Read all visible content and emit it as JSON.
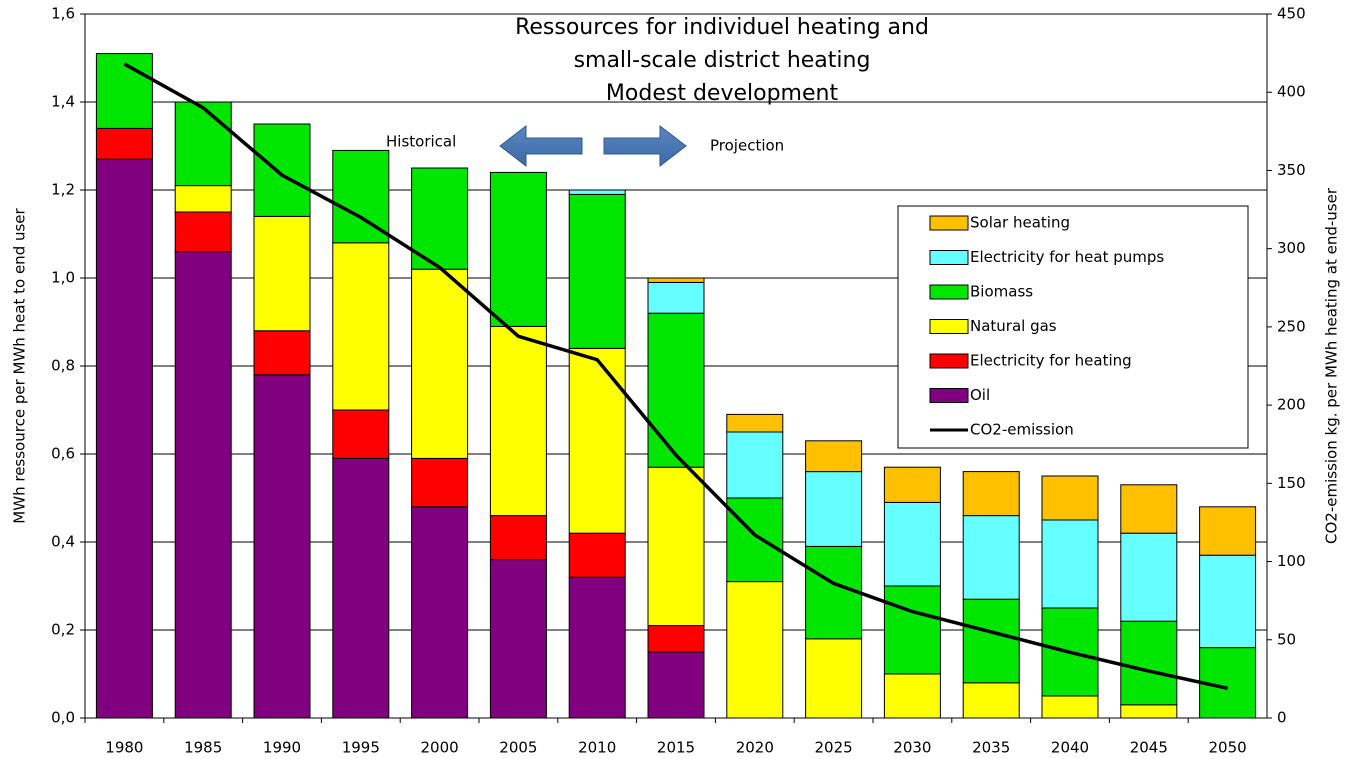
{
  "chart_data": {
    "type": "bar",
    "stacked": true,
    "title": [
      "Ressources for individuel heating and",
      "small-scale district heating",
      "Modest development"
    ],
    "ylabel": "MWh ressource per MWh heat to end user",
    "y2label": "CO2-emission kg. per MWh heating at end-user",
    "annotations": [
      "Historical",
      "Projection"
    ],
    "categories": [
      "1980",
      "1985",
      "1990",
      "1995",
      "2000",
      "2005",
      "2010",
      "2015",
      "2020",
      "2025",
      "2030",
      "2035",
      "2040",
      "2045",
      "2050"
    ],
    "series": [
      {
        "name": "Oil",
        "color": "#800080",
        "values": [
          1.27,
          1.06,
          0.78,
          0.59,
          0.48,
          0.36,
          0.32,
          0.15,
          0,
          0,
          0,
          0,
          0,
          0,
          0
        ]
      },
      {
        "name": "Electricity for heating",
        "color": "#ff0000",
        "values": [
          0.07,
          0.09,
          0.1,
          0.11,
          0.11,
          0.1,
          0.1,
          0.06,
          0,
          0,
          0,
          0,
          0,
          0,
          0
        ]
      },
      {
        "name": "Natural gas",
        "color": "#ffff00",
        "values": [
          0,
          0.06,
          0.26,
          0.38,
          0.43,
          0.43,
          0.42,
          0.36,
          0.31,
          0.18,
          0.1,
          0.08,
          0.05,
          0.03,
          0
        ]
      },
      {
        "name": "Biomass",
        "color": "#00e600",
        "values": [
          0.17,
          0.19,
          0.21,
          0.21,
          0.23,
          0.35,
          0.35,
          0.35,
          0.19,
          0.21,
          0.2,
          0.19,
          0.2,
          0.19,
          0.16
        ]
      },
      {
        "name": "Electricity for heat pumps",
        "color": "#66ffff",
        "values": [
          0,
          0,
          0,
          0,
          0,
          0,
          0.01,
          0.07,
          0.15,
          0.17,
          0.19,
          0.19,
          0.2,
          0.2,
          0.21
        ]
      },
      {
        "name": "Solar heating",
        "color": "#ffc000",
        "values": [
          0,
          0,
          0,
          0,
          0,
          0,
          0,
          0.01,
          0.04,
          0.07,
          0.08,
          0.1,
          0.1,
          0.11,
          0.11
        ]
      },
      {
        "name": "CO2-emission",
        "type": "line",
        "axis": "y2",
        "color": "#000000",
        "values": [
          418,
          390,
          347,
          320,
          288,
          244,
          229,
          168,
          117,
          86,
          68,
          55,
          42,
          30,
          19
        ]
      }
    ],
    "ylim": [
      0,
      1.6
    ],
    "yticks": [
      {
        "value": 0,
        "label": "0,0"
      },
      {
        "value": 0.2,
        "label": "0,2"
      },
      {
        "value": 0.4,
        "label": "0,4"
      },
      {
        "value": 0.6,
        "label": "0,6"
      },
      {
        "value": 0.8,
        "label": "0,8"
      },
      {
        "value": 1.0,
        "label": "1,0"
      },
      {
        "value": 1.2,
        "label": "1,2"
      },
      {
        "value": 1.4,
        "label": "1,4"
      },
      {
        "value": 1.6,
        "label": "1,6"
      }
    ],
    "y2lim": [
      0,
      450
    ],
    "y2ticks": [
      0,
      50,
      100,
      150,
      200,
      250,
      300,
      350,
      400,
      450
    ],
    "grid": true,
    "legend": "right"
  }
}
